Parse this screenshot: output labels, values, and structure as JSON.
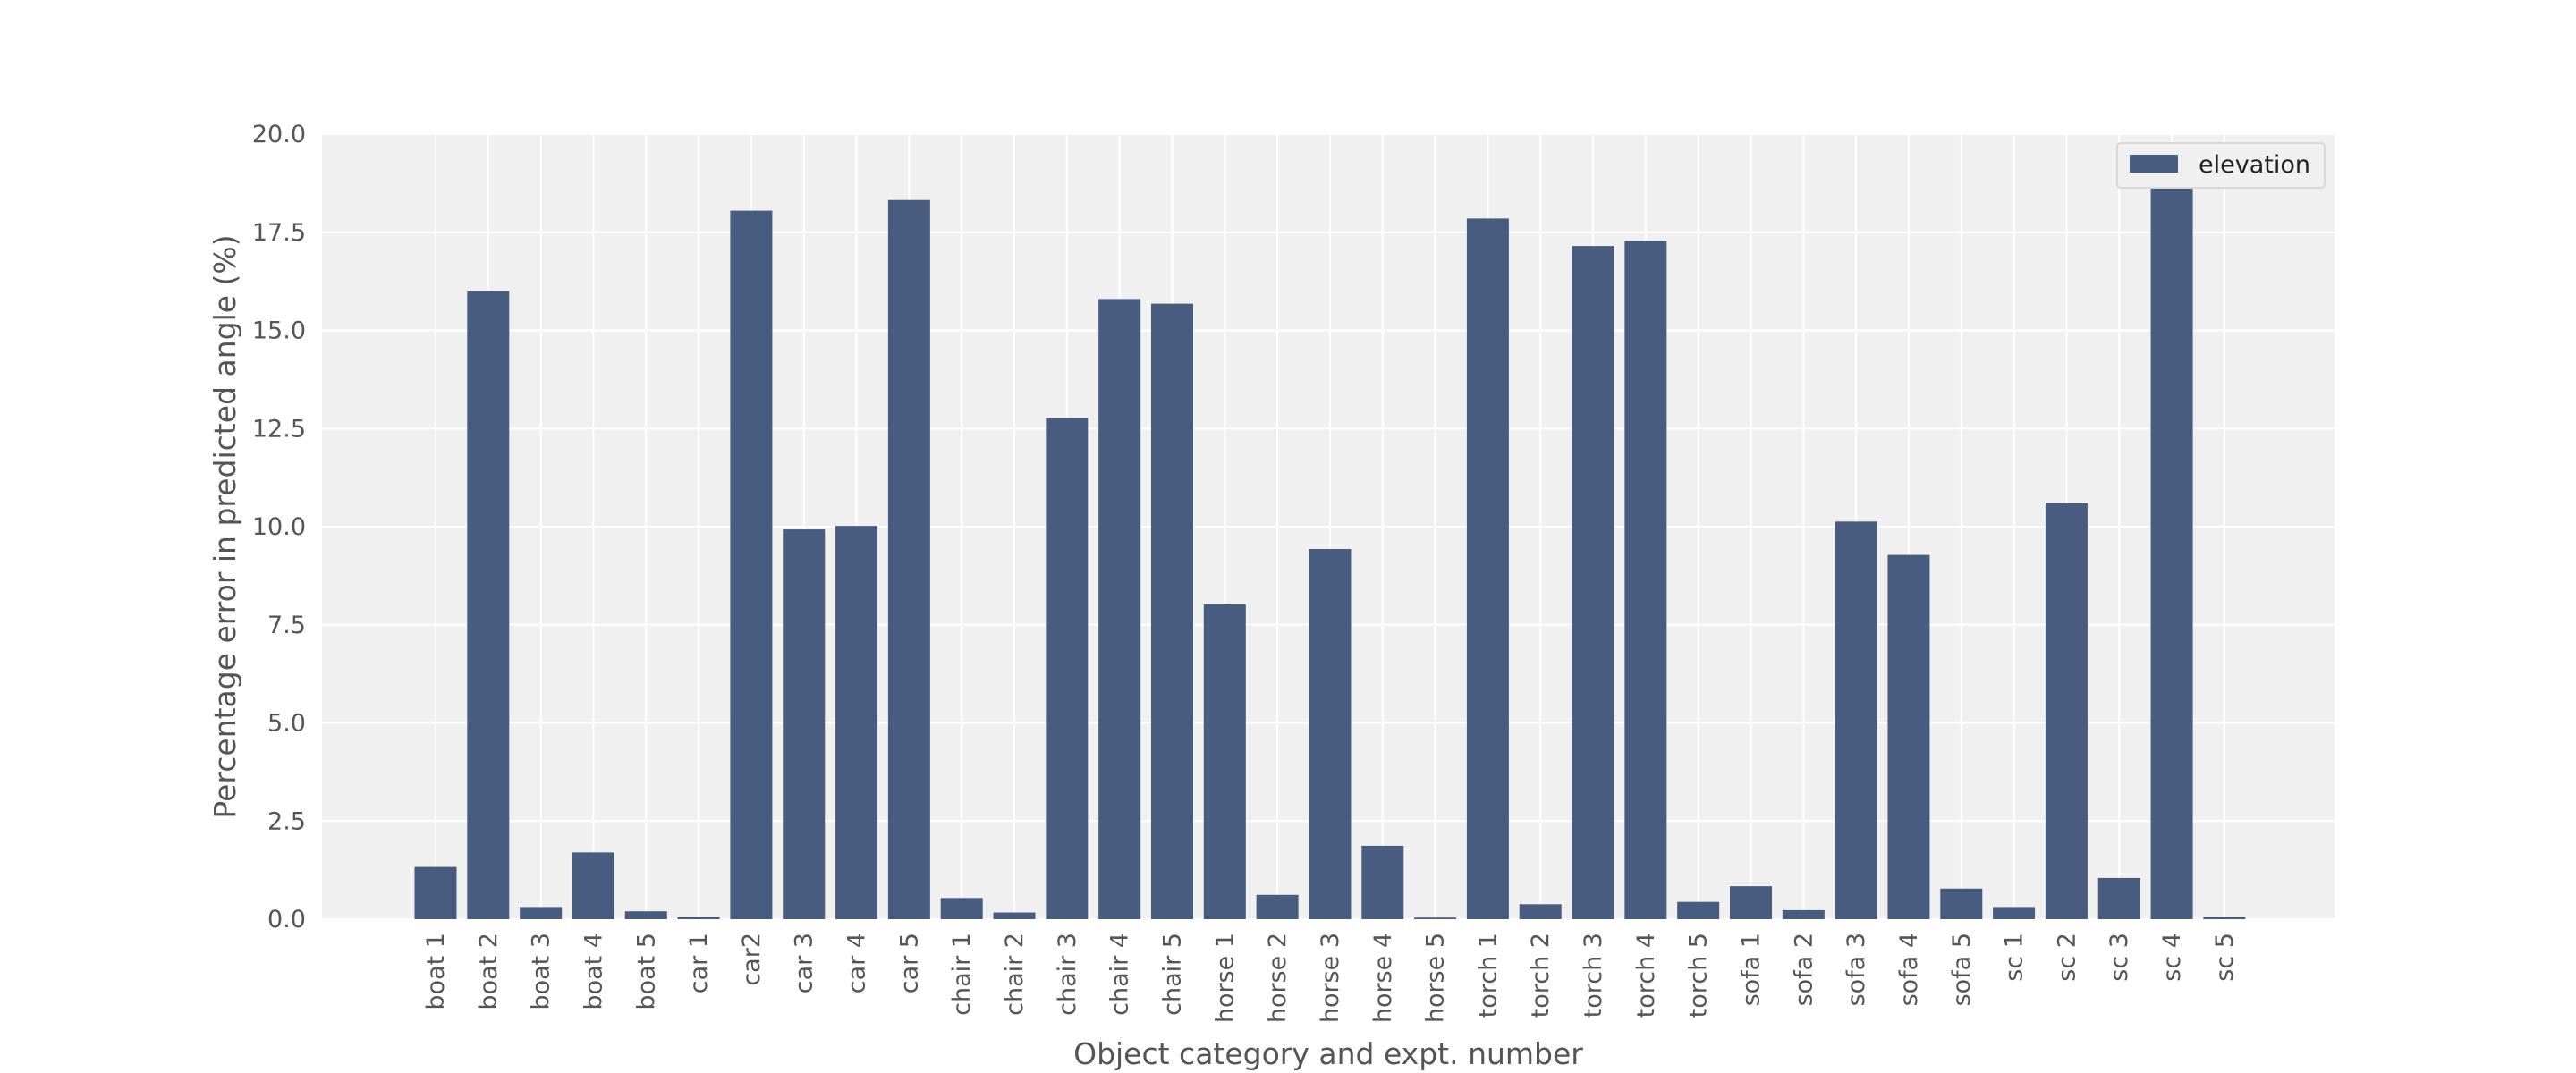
{
  "chart_data": {
    "type": "bar",
    "title": "",
    "xlabel": "Object category and expt. number",
    "ylabel": "Percentage error in predicted angle (%)",
    "ylim": [
      0,
      20
    ],
    "yticks": [
      "0.0",
      "2.5",
      "5.0",
      "7.5",
      "10.0",
      "12.5",
      "15.0",
      "17.5",
      "20.0"
    ],
    "grid": true,
    "legend_position": "top-right",
    "categories": [
      "boat 1",
      "boat 2",
      "boat 3",
      "boat 4",
      "boat 5",
      "car 1",
      "car2",
      "car 3",
      "car 4",
      "car 5",
      "chair 1",
      "chair 2",
      "chair 3",
      "chair 4",
      "chair 5",
      "horse 1",
      "horse 2",
      "horse 3",
      "horse 4",
      "horse 5",
      "torch 1",
      "torch 2",
      "torch 3",
      "torch 4",
      "torch 5",
      "sofa 1",
      "sofa 2",
      "sofa 3",
      "sofa 4",
      "sofa 5",
      "sc 1",
      "sc 2",
      "sc 3",
      "sc 4",
      "sc 5"
    ],
    "series": [
      {
        "name": "elevation",
        "color": "#475c7f",
        "values": [
          1.33,
          16.0,
          0.31,
          1.7,
          0.2,
          0.06,
          18.05,
          9.93,
          10.02,
          18.32,
          0.54,
          0.17,
          12.77,
          15.8,
          15.68,
          8.02,
          0.62,
          9.43,
          1.87,
          0.04,
          17.85,
          0.38,
          17.15,
          17.28,
          0.44,
          0.84,
          0.23,
          10.13,
          9.28,
          0.78,
          0.31,
          10.6,
          1.05,
          19.15,
          0.06
        ]
      }
    ]
  }
}
